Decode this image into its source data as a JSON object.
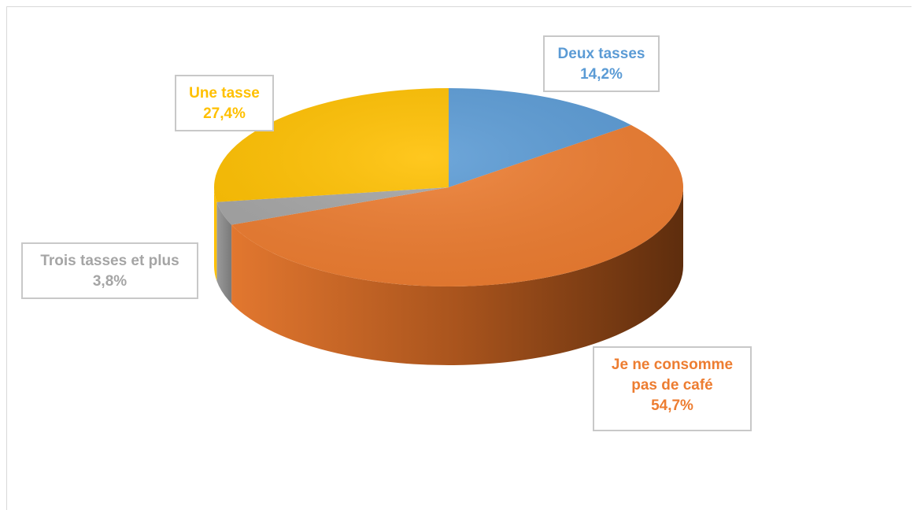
{
  "chart_data": {
    "type": "pie",
    "title": "",
    "style": "3d",
    "slices": [
      {
        "name": "Deux tasses",
        "label_lines": [
          "Deux tasses"
        ],
        "value": 14.2,
        "value_label": "14,2%",
        "color": "#5b9bd5",
        "label_color": "#5b9bd5"
      },
      {
        "name": "Je ne consomme pas de café",
        "label_lines": [
          "Je ne consomme",
          "pas de café"
        ],
        "value": 54.7,
        "value_label": "54,7%",
        "color": "#ed7d31",
        "label_color": "#ed7d31"
      },
      {
        "name": "Trois tasses et plus",
        "label_lines": [
          "Trois tasses et plus"
        ],
        "value": 3.8,
        "value_label": "3,8%",
        "color": "#a5a5a5",
        "label_color": "#a5a5a5"
      },
      {
        "name": "Une tasse",
        "label_lines": [
          "Une tasse"
        ],
        "value": 27.4,
        "value_label": "27,4%",
        "color": "#ffc000",
        "label_color": "#ffc000"
      }
    ],
    "legend": "none"
  }
}
